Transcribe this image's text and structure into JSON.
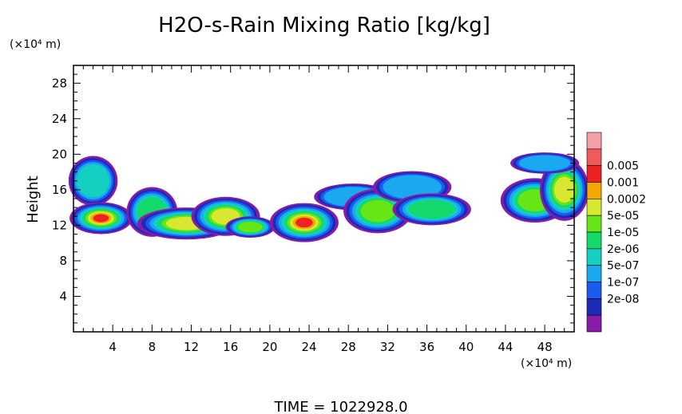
{
  "chart_data": {
    "type": "heatmap",
    "title": "H2O-s-Rain Mixing Ratio [kg/kg]",
    "ylabel": "Height",
    "x_unit": "(×10⁴ m)",
    "y_unit": "(×10⁴ m)",
    "xlim": [
      0,
      51
    ],
    "ylim": [
      0,
      30
    ],
    "x_ticks": [
      "4",
      "8",
      "12",
      "16",
      "20",
      "24",
      "28",
      "32",
      "36",
      "40",
      "44",
      "48"
    ],
    "y_ticks": [
      "4",
      "8",
      "12",
      "16",
      "20",
      "24",
      "28"
    ],
    "legend": [
      {
        "label": "",
        "color": "#f4a0a8"
      },
      {
        "label": "0.005",
        "color": "#f05a5a"
      },
      {
        "label": "0.001",
        "color": "#ee2222"
      },
      {
        "label": "0.0002",
        "color": "#f7a800"
      },
      {
        "label": "5e-05",
        "color": "#d8e830"
      },
      {
        "label": "1e-05",
        "color": "#66e616"
      },
      {
        "label": "2e-06",
        "color": "#13d86a"
      },
      {
        "label": "5e-07",
        "color": "#13d0c0"
      },
      {
        "label": "1e-07",
        "color": "#1aa8f0"
      },
      {
        "label": "2e-08",
        "color": "#1a5cf0"
      },
      {
        "label": "",
        "color": "#1c2ab8"
      },
      {
        "label": "",
        "color": "#8a1aa8"
      }
    ],
    "blobs": [
      {
        "x": 2.0,
        "y": 17.0,
        "rx": 2.5,
        "ry": 2.8,
        "peak": 5
      },
      {
        "x": 2.8,
        "y": 12.8,
        "rx": 3.2,
        "ry": 1.8,
        "peak": 10
      },
      {
        "x": 8.0,
        "y": 13.5,
        "rx": 2.6,
        "ry": 2.8,
        "peak": 6
      },
      {
        "x": 11.5,
        "y": 12.2,
        "rx": 5.0,
        "ry": 1.8,
        "peak": 8
      },
      {
        "x": 15.5,
        "y": 13.0,
        "rx": 3.5,
        "ry": 2.2,
        "peak": 8
      },
      {
        "x": 18.0,
        "y": 11.8,
        "rx": 2.5,
        "ry": 1.2,
        "peak": 7
      },
      {
        "x": 23.5,
        "y": 12.3,
        "rx": 3.5,
        "ry": 2.2,
        "peak": 10
      },
      {
        "x": 28.5,
        "y": 15.2,
        "rx": 4.0,
        "ry": 1.5,
        "peak": 4
      },
      {
        "x": 31.0,
        "y": 13.6,
        "rx": 3.5,
        "ry": 2.5,
        "peak": 7
      },
      {
        "x": 34.5,
        "y": 16.3,
        "rx": 4.0,
        "ry": 1.8,
        "peak": 4
      },
      {
        "x": 36.5,
        "y": 13.8,
        "rx": 4.0,
        "ry": 1.8,
        "peak": 6
      },
      {
        "x": 47.0,
        "y": 14.8,
        "rx": 3.5,
        "ry": 2.5,
        "peak": 7
      },
      {
        "x": 50.0,
        "y": 16.0,
        "rx": 2.5,
        "ry": 3.5,
        "peak": 8
      },
      {
        "x": 48.0,
        "y": 19.0,
        "rx": 3.5,
        "ry": 1.2,
        "peak": 4
      }
    ],
    "footer": "TIME  =  1022928.0"
  }
}
